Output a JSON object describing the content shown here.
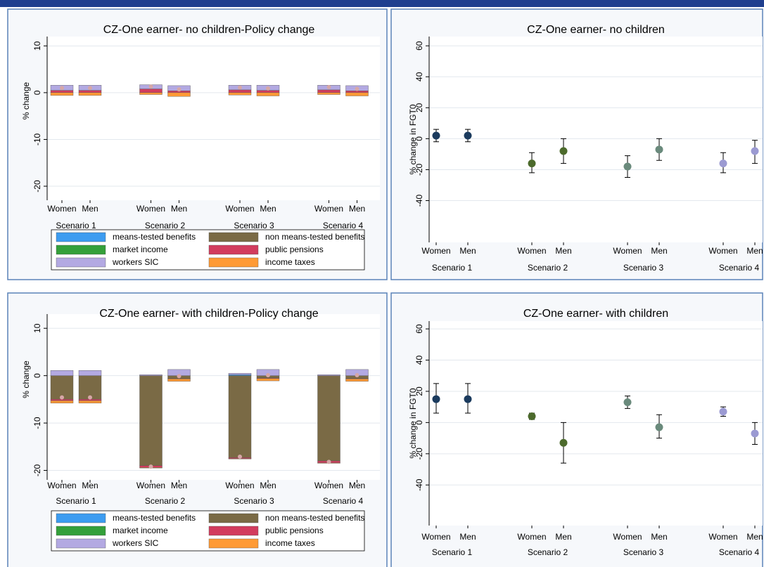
{
  "chart_data": [
    {
      "type": "bar",
      "title": "CZ-One earner- no children-Policy change",
      "ylabel": "% change",
      "categories": [
        "Women",
        "Men",
        "Women",
        "Men",
        "Women",
        "Men",
        "Women",
        "Men"
      ],
      "groups": [
        "Scenario 1",
        "Scenario 2",
        "Scenario 3",
        "Scenario 4"
      ],
      "ylim": [
        -23,
        12
      ],
      "yticks": [
        10,
        0,
        -10,
        -20
      ],
      "grid": true,
      "series": [
        {
          "name": "means-tested benefits",
          "color": "#3d9cf0",
          "values": [
            0,
            0,
            0,
            0,
            0,
            0,
            0,
            0
          ]
        },
        {
          "name": "non means-tested benefits",
          "color": "#7a6a45",
          "values": [
            0,
            0,
            0,
            0,
            0,
            0,
            0,
            0
          ]
        },
        {
          "name": "market income",
          "color": "#34a03a",
          "values": [
            0,
            0,
            0,
            0,
            0,
            0,
            0,
            0
          ]
        },
        {
          "name": "public pensions",
          "color": "#d23c5e",
          "values": [
            0.5,
            0.5,
            0.8,
            0.4,
            0.6,
            0.5,
            0.6,
            0.4
          ]
        },
        {
          "name": "workers SIC",
          "color": "#b3a9e2",
          "values": [
            1.1,
            1.1,
            0.9,
            1.1,
            1.0,
            1.1,
            1.0,
            1.1
          ]
        },
        {
          "name": "income taxes",
          "color": "#ff9a35",
          "values": [
            -0.6,
            -0.6,
            -0.4,
            -0.8,
            -0.5,
            -0.7,
            -0.4,
            -0.7
          ]
        }
      ],
      "totals": [
        1.0,
        1.0,
        1.3,
        0.7,
        1.1,
        0.9,
        1.2,
        0.8
      ]
    },
    {
      "type": "scatter",
      "title": "CZ-One earner- no children",
      "ylabel": "% change in FGT0",
      "categories": [
        "Women",
        "Men",
        "Women",
        "Men",
        "Women",
        "Men",
        "Women",
        "Men"
      ],
      "groups": [
        "Scenario 1",
        "Scenario 2",
        "Scenario 3",
        "Scenario 4"
      ],
      "ylim": [
        -67,
        66
      ],
      "yticks": [
        60,
        40,
        20,
        0,
        -20,
        -40
      ],
      "grid": true,
      "colors": [
        "#1b3b5e",
        "#4c6a2c",
        "#6a8a7c",
        "#9b9ad2"
      ],
      "values": [
        2,
        2,
        -16,
        -8,
        -18,
        -7,
        -16,
        -8
      ],
      "lower": [
        -2,
        -2,
        -22,
        -16,
        -25,
        -14,
        -22,
        -16
      ],
      "upper": [
        6,
        6,
        -9,
        0,
        -11,
        0,
        -9,
        -1
      ]
    },
    {
      "type": "bar",
      "title": "CZ-One earner- with children-Policy change",
      "ylabel": "% change",
      "categories": [
        "Women",
        "Men",
        "Women",
        "Men",
        "Women",
        "Men",
        "Women",
        "Men"
      ],
      "groups": [
        "Scenario 1",
        "Scenario 2",
        "Scenario 3",
        "Scenario 4"
      ],
      "ylim": [
        -22,
        13
      ],
      "yticks": [
        10,
        0,
        -10,
        -20
      ],
      "grid": true,
      "series": [
        {
          "name": "means-tested benefits",
          "color": "#3d9cf0",
          "values": [
            0,
            0,
            0,
            0,
            0.2,
            0,
            0,
            0
          ]
        },
        {
          "name": "non means-tested benefits",
          "color": "#7a6a45",
          "values": [
            -5,
            -5,
            -19,
            -0.6,
            -17.3,
            -0.5,
            -18,
            -0.6
          ]
        },
        {
          "name": "market income",
          "color": "#34a03a",
          "values": [
            0,
            0,
            0,
            0,
            0,
            0,
            0,
            0
          ]
        },
        {
          "name": "public pensions",
          "color": "#d23c5e",
          "values": [
            -0.3,
            -0.3,
            -0.4,
            -0.1,
            -0.2,
            -0.1,
            -0.4,
            -0.1
          ]
        },
        {
          "name": "workers SIC",
          "color": "#b3a9e2",
          "values": [
            1.1,
            1.1,
            0.2,
            1.3,
            0.3,
            1.3,
            0.2,
            1.3
          ]
        },
        {
          "name": "income taxes",
          "color": "#ff9a35",
          "values": [
            -0.5,
            -0.5,
            -0.1,
            -0.5,
            -0.1,
            -0.5,
            -0.1,
            -0.5
          ]
        }
      ],
      "totals": [
        -4.6,
        -4.6,
        -19.2,
        -0.1,
        -17.1,
        0.1,
        -18.2,
        0.1
      ]
    },
    {
      "type": "scatter",
      "title": "CZ-One earner- with children",
      "ylabel": "% change in FGT0",
      "categories": [
        "Women",
        "Men",
        "Women",
        "Men",
        "Women",
        "Men",
        "Women",
        "Men"
      ],
      "groups": [
        "Scenario 1",
        "Scenario 2",
        "Scenario 3",
        "Scenario 4"
      ],
      "ylim": [
        -66,
        65
      ],
      "yticks": [
        60,
        40,
        20,
        0,
        -20,
        -40
      ],
      "grid": true,
      "colors": [
        "#1b3b5e",
        "#4c6a2c",
        "#6a8a7c",
        "#9b9ad2"
      ],
      "values": [
        15,
        15,
        4,
        -13,
        13,
        -3,
        7,
        -7
      ],
      "lower": [
        6,
        6,
        2,
        -26,
        9,
        -10,
        4,
        -14
      ],
      "upper": [
        25,
        25,
        6,
        0,
        17,
        5,
        10,
        0
      ]
    }
  ]
}
